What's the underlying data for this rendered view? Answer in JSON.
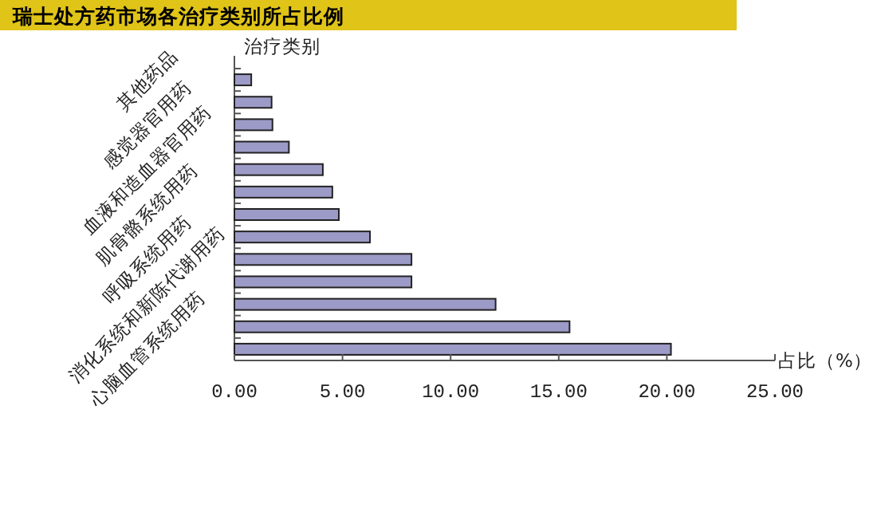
{
  "chart_data": {
    "type": "bar",
    "orientation": "horizontal",
    "title": "瑞士处方药市场各治疗类别所占比例",
    "ylabel": "治疗类别",
    "xlabel": "占比（%）",
    "categories": [
      "其他药品",
      null,
      "感觉器官用药",
      null,
      "血液和造血器官用药",
      null,
      "肌骨骼系统用药",
      null,
      "呼吸系统用药",
      null,
      "消化系统和新陈代谢用药",
      null,
      "心脑血管系统用药"
    ],
    "values": [
      0.78,
      1.72,
      1.76,
      2.52,
      4.09,
      4.53,
      4.83,
      6.27,
      8.19,
      8.19,
      12.08,
      15.5,
      20.19
    ],
    "color": "#9c9ac6",
    "xlim": [
      0,
      25
    ],
    "xticks": [
      {
        "value": 0,
        "label": "0.00"
      },
      {
        "value": 5,
        "label": "5.00"
      },
      {
        "value": 10,
        "label": "10.00"
      },
      {
        "value": 15,
        "label": "15.00"
      },
      {
        "value": 20,
        "label": "20.00"
      },
      {
        "value": 25,
        "label": "25.00"
      }
    ]
  }
}
